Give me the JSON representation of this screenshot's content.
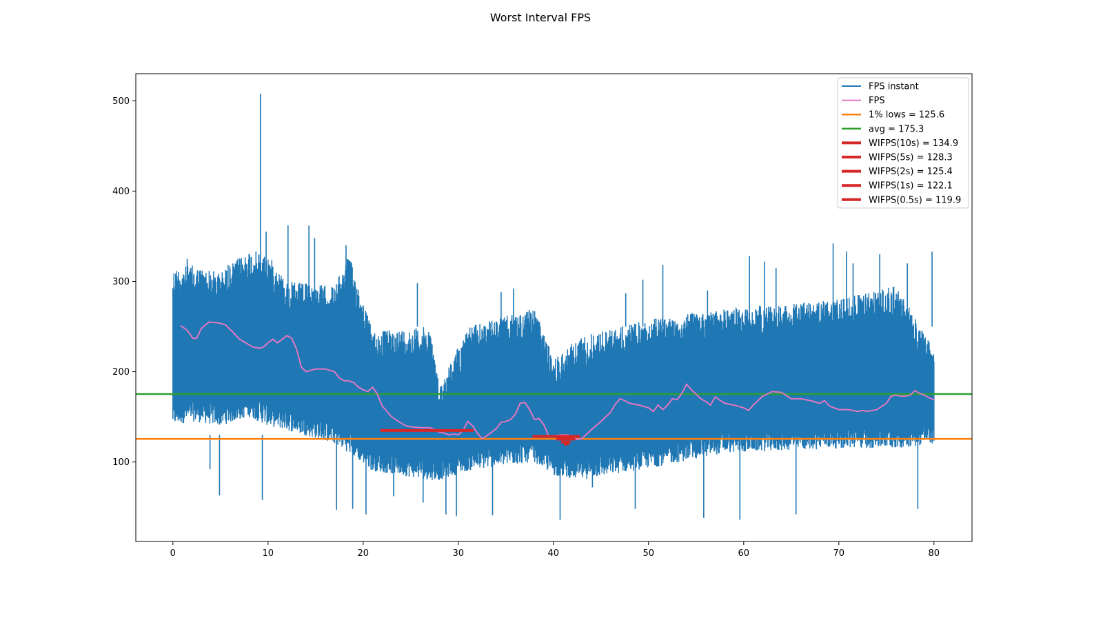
{
  "chart_data": {
    "type": "line",
    "title": "Worst Interval FPS",
    "xlabel": "",
    "ylabel": "",
    "xlim": [
      -3.9,
      84
    ],
    "ylim": [
      12,
      530
    ],
    "xticks": [
      0,
      10,
      20,
      30,
      40,
      50,
      60,
      70,
      80
    ],
    "yticks": [
      100,
      200,
      300,
      400,
      500
    ],
    "grid": false,
    "legend_position": "top-right",
    "colors": {
      "fps_instant": "#1f77b4",
      "fps": "#e377c2",
      "lows": "#ff7f0e",
      "avg": "#2ca02c",
      "wifps": "#d62728"
    },
    "series": [
      {
        "name": "FPS instant",
        "kind": "instant_band",
        "segments": [
          {
            "x": [
              0,
              2
            ],
            "low": [
              140,
              145
            ],
            "high": [
              315,
              318
            ]
          },
          {
            "x": [
              2,
              5
            ],
            "low": [
              145,
              140
            ],
            "high": [
              318,
              310
            ]
          },
          {
            "x": [
              5,
              8
            ],
            "low": [
              140,
              150
            ],
            "high": [
              310,
              335
            ]
          },
          {
            "x": [
              8,
              10
            ],
            "low": [
              150,
              140
            ],
            "high": [
              335,
              330
            ]
          },
          {
            "x": [
              10,
              12
            ],
            "low": [
              140,
              135
            ],
            "high": [
              330,
              300
            ]
          },
          {
            "x": [
              12,
              17
            ],
            "low": [
              135,
              120
            ],
            "high": [
              300,
              295
            ]
          },
          {
            "x": [
              17,
              18.5
            ],
            "low": [
              120,
              110
            ],
            "high": [
              295,
              330
            ]
          },
          {
            "x": [
              18.5,
              21
            ],
            "low": [
              110,
              90
            ],
            "high": [
              330,
              245
            ]
          },
          {
            "x": [
              21,
              27
            ],
            "low": [
              90,
              80
            ],
            "high": [
              245,
              250
            ]
          },
          {
            "x": [
              27,
              28
            ],
            "low": [
              80,
              80
            ],
            "high": [
              250,
              185
            ]
          },
          {
            "x": [
              28,
              31
            ],
            "low": [
              80,
              90
            ],
            "high": [
              185,
              250
            ]
          },
          {
            "x": [
              31,
              38
            ],
            "low": [
              90,
              100
            ],
            "high": [
              250,
              270
            ]
          },
          {
            "x": [
              38,
              40
            ],
            "low": [
              100,
              85
            ],
            "high": [
              270,
              215
            ]
          },
          {
            "x": [
              40,
              43
            ],
            "low": [
              85,
              80
            ],
            "high": [
              215,
              240
            ]
          },
          {
            "x": [
              43,
              51
            ],
            "low": [
              80,
              95
            ],
            "high": [
              240,
              260
            ]
          },
          {
            "x": [
              51,
              58
            ],
            "low": [
              95,
              110
            ],
            "high": [
              260,
              270
            ]
          },
          {
            "x": [
              58,
              70
            ],
            "low": [
              110,
              115
            ],
            "high": [
              270,
              280
            ]
          },
          {
            "x": [
              70,
              76
            ],
            "low": [
              115,
              115
            ],
            "high": [
              280,
              295
            ]
          },
          {
            "x": [
              76,
              80
            ],
            "low": [
              115,
              120
            ],
            "high": [
              295,
              225
            ]
          }
        ],
        "spikes": [
          [
            9.2,
            508
          ],
          [
            1.5,
            325
          ],
          [
            5.8,
            318
          ],
          [
            9.8,
            355
          ],
          [
            12.1,
            362
          ],
          [
            14.3,
            362
          ],
          [
            14.9,
            348
          ],
          [
            18.2,
            340
          ],
          [
            25.7,
            298
          ],
          [
            34.5,
            288
          ],
          [
            35.8,
            292
          ],
          [
            47.6,
            287
          ],
          [
            49.4,
            302
          ],
          [
            51.5,
            318
          ],
          [
            56.2,
            290
          ],
          [
            60.6,
            328
          ],
          [
            62.2,
            322
          ],
          [
            63.4,
            315
          ],
          [
            69.4,
            342
          ],
          [
            70.8,
            333
          ],
          [
            71.5,
            320
          ],
          [
            74.3,
            330
          ],
          [
            77.2,
            320
          ],
          [
            79.8,
            333
          ],
          [
            4.9,
            63
          ],
          [
            9.4,
            58
          ],
          [
            3.9,
            92
          ],
          [
            17.2,
            47
          ],
          [
            18.9,
            48
          ],
          [
            20.3,
            42
          ],
          [
            23.2,
            62
          ],
          [
            28.7,
            42
          ],
          [
            29.8,
            40
          ],
          [
            33.6,
            41
          ],
          [
            40.7,
            36
          ],
          [
            44.1,
            72
          ],
          [
            48.6,
            48
          ],
          [
            55.8,
            38
          ],
          [
            59.6,
            36
          ],
          [
            65.5,
            42
          ],
          [
            78.3,
            48
          ],
          [
            26.3,
            55
          ]
        ]
      },
      {
        "name": "FPS",
        "x": [
          0.8,
          1.5,
          2.1,
          2.5,
          3.0,
          3.8,
          4.8,
          5.5,
          6.2,
          7.0,
          7.8,
          8.5,
          9.2,
          9.6,
          10.0,
          10.5,
          11.0,
          11.5,
          12.0,
          12.5,
          13.0,
          13.5,
          14.0,
          15.0,
          16.0,
          17.0,
          17.5,
          18.0,
          18.5,
          19.0,
          19.5,
          20.0,
          20.5,
          21.0,
          21.5,
          22.0,
          23.0,
          24.0,
          24.5,
          25.0,
          26.0,
          27.0,
          27.5,
          28.0,
          28.5,
          29.0,
          29.5,
          30.0,
          30.5,
          31.0,
          31.5,
          32.0,
          32.5,
          33.0,
          34.0,
          34.5,
          35.0,
          35.5,
          36.0,
          36.5,
          37.0,
          37.5,
          38.0,
          38.5,
          39.0,
          39.5,
          40.0,
          41.0,
          41.5,
          42.0,
          42.5,
          43.0,
          44.0,
          45.0,
          45.5,
          46.0,
          46.5,
          47.0,
          47.5,
          48.0,
          49.0,
          50.0,
          50.5,
          51.0,
          51.5,
          52.0,
          52.5,
          53.0,
          53.5,
          54.0,
          54.5,
          55.0,
          55.5,
          56.0,
          56.5,
          57.0,
          58.0,
          59.0,
          60.0,
          60.5,
          61.0,
          62.0,
          63.0,
          64.0,
          65.0,
          66.0,
          67.0,
          68.0,
          68.5,
          69.0,
          70.0,
          71.0,
          72.0,
          72.5,
          73.0,
          74.0,
          75.0,
          75.5,
          76.0,
          76.5,
          77.0,
          77.5,
          78.0,
          78.5,
          79.0,
          79.5,
          80.0
        ],
        "values": [
          251,
          246,
          237,
          237,
          248,
          255,
          254,
          252,
          245,
          236,
          231,
          227,
          226,
          228,
          232,
          236,
          232,
          236,
          240,
          237,
          225,
          205,
          200,
          203,
          203,
          200,
          193,
          190,
          190,
          188,
          183,
          180,
          178,
          183,
          175,
          162,
          150,
          143,
          140,
          139,
          138,
          138,
          136,
          133,
          132,
          130,
          131,
          130,
          135,
          145,
          140,
          132,
          126,
          129,
          137,
          144,
          145,
          147,
          153,
          165,
          166,
          158,
          147,
          148,
          141,
          129,
          129,
          130,
          130,
          128,
          125,
          126,
          136,
          145,
          150,
          155,
          164,
          170,
          168,
          165,
          163,
          160,
          156,
          163,
          158,
          163,
          170,
          169,
          176,
          186,
          180,
          175,
          170,
          167,
          163,
          172,
          165,
          163,
          160,
          157,
          163,
          173,
          178,
          177,
          170,
          170,
          168,
          165,
          168,
          162,
          158,
          158,
          156,
          157,
          156,
          158,
          165,
          173,
          174,
          173,
          173,
          174,
          179,
          176,
          174,
          171,
          169
        ]
      }
    ],
    "hlines": [
      {
        "name": "1% lows = 125.6",
        "y": 125.6
      },
      {
        "name": "avg = 175.3",
        "y": 175.3
      }
    ],
    "wifps": [
      {
        "name": "WIFPS(10s) = 134.9",
        "y": 134.9,
        "x0": 21.8,
        "x1": 31.6
      },
      {
        "name": "WIFPS(5s) = 128.3",
        "y": 128.3,
        "x0": 37.8,
        "x1": 42.8
      },
      {
        "name": "WIFPS(2s) = 125.4",
        "y": 125.4,
        "x0": 40.3,
        "x1": 42.3
      },
      {
        "name": "WIFPS(1s) = 122.1",
        "y": 122.1,
        "x0": 40.8,
        "x1": 41.8
      },
      {
        "name": "WIFPS(0.5s) = 119.9",
        "y": 119.9,
        "x0": 41.1,
        "x1": 41.6
      }
    ]
  }
}
